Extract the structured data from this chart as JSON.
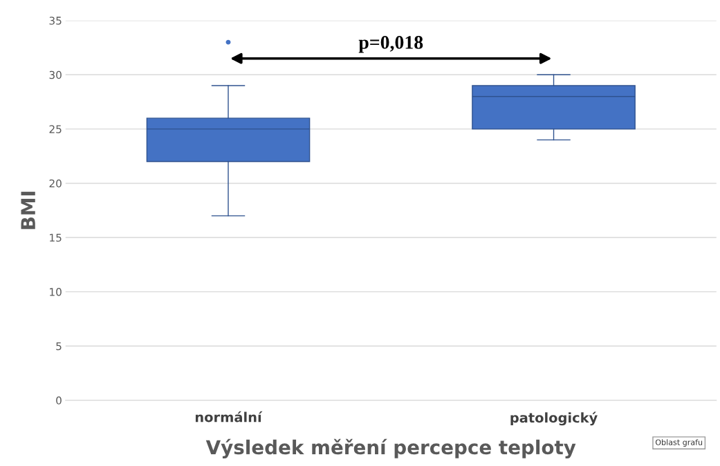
{
  "chart_data": {
    "type": "box",
    "categories": [
      "normální",
      "patologický"
    ],
    "boxes": [
      {
        "low": 17,
        "q1": 22,
        "median": 25,
        "q3": 26,
        "high": 29,
        "outliers": [
          33
        ]
      },
      {
        "low": 24,
        "q1": 25,
        "median": 28,
        "q3": 29,
        "high": 30
      }
    ],
    "color": "#4472c4",
    "ylabel": "BMI",
    "xlabel": "Výsledek měření percepce teploty",
    "ylim": [
      0,
      35
    ],
    "yticks": [
      0,
      5,
      10,
      15,
      20,
      25,
      30,
      35
    ],
    "grid": "y",
    "annotations": [
      "p=0,018",
      "Oblast grafu"
    ]
  }
}
